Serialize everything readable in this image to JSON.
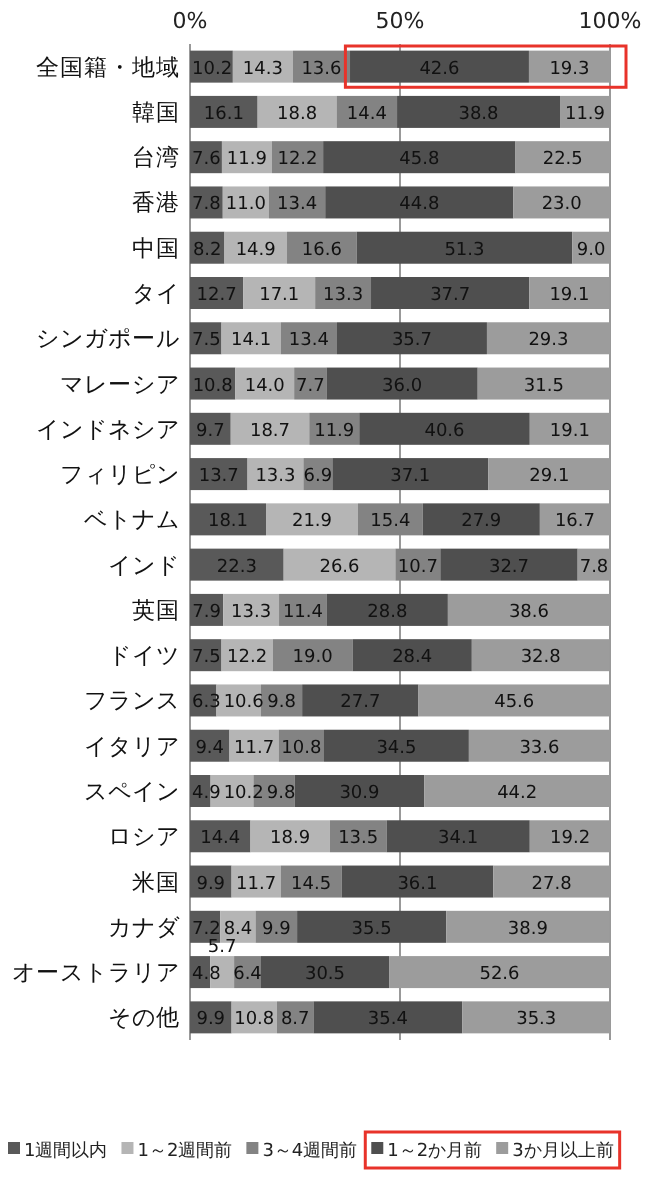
{
  "chart_data": {
    "type": "bar",
    "orientation": "horizontal",
    "stacked": true,
    "grid": "x",
    "legend": "bottom",
    "categories": [
      "全国籍・地域",
      "韓国",
      "台湾",
      "香港",
      "中国",
      "タイ",
      "シンガポール",
      "マレーシア",
      "インドネシア",
      "フィリピン",
      "ベトナム",
      "インド",
      "英国",
      "ドイツ",
      "フランス",
      "イタリア",
      "スペイン",
      "ロシア",
      "米国",
      "カナダ",
      "オーストラリア",
      "その他"
    ],
    "xlim": [
      0,
      100
    ],
    "xticks": [
      {
        "value": 0,
        "label": "0%"
      },
      {
        "value": 50,
        "label": "50%"
      },
      {
        "value": 100,
        "label": "100%"
      }
    ],
    "series": [
      {
        "name": "1週間以内",
        "color": "#595959",
        "values": [
          10.2,
          16.1,
          7.6,
          7.8,
          8.2,
          12.7,
          7.5,
          10.8,
          9.7,
          13.7,
          18.1,
          22.3,
          7.9,
          7.5,
          6.3,
          9.4,
          4.9,
          14.4,
          9.9,
          7.2,
          4.8,
          9.9
        ],
        "value_labels": [
          "10.2",
          "16.1",
          "7.6",
          "7.8",
          "8.2",
          "12.7",
          "7.5",
          "10.8",
          "9.7",
          "13.7",
          "18.1",
          "22.3",
          "7.9",
          "7.5",
          "6.3",
          "9.4",
          "4.9",
          "14.4",
          "9.9",
          "7.2",
          "4.8",
          "9.9"
        ]
      },
      {
        "name": "1～2週間前",
        "color": "#b5b5b5",
        "values": [
          14.3,
          18.8,
          11.9,
          11.0,
          14.9,
          17.1,
          14.1,
          14.0,
          18.7,
          13.3,
          21.9,
          26.6,
          13.3,
          12.2,
          10.6,
          11.7,
          10.2,
          18.9,
          11.7,
          8.4,
          5.7,
          10.8
        ],
        "value_labels": [
          "14.3",
          "18.8",
          "11.9",
          "11.0",
          "14.9",
          "17.1",
          "14.1",
          "14.0",
          "18.7",
          "13.3",
          "21.9",
          "26.6",
          "13.3",
          "12.2",
          "10.6",
          "11.7",
          "10.2",
          "18.9",
          "11.7",
          "8.4",
          "5.7",
          "10.8"
        ]
      },
      {
        "name": "3～4週間前",
        "color": "#838383",
        "values": [
          13.6,
          14.4,
          12.2,
          13.4,
          16.6,
          13.3,
          13.4,
          7.7,
          11.9,
          6.9,
          15.4,
          10.7,
          11.4,
          19.0,
          9.8,
          10.8,
          9.8,
          13.5,
          14.5,
          9.9,
          6.4,
          8.7
        ],
        "value_labels": [
          "13.6",
          "14.4",
          "12.2",
          "13.4",
          "16.6",
          "13.3",
          "13.4",
          "7.7",
          "11.9",
          "6.9",
          "15.4",
          "10.7",
          "11.4",
          "19.0",
          "9.8",
          "10.8",
          "9.8",
          "13.5",
          "14.5",
          "9.9",
          "6.4",
          "8.7"
        ]
      },
      {
        "name": "1～2か月前",
        "color": "#4f4f4f",
        "values": [
          42.6,
          38.8,
          45.8,
          44.8,
          51.3,
          37.7,
          35.7,
          36.0,
          40.6,
          37.1,
          27.9,
          32.7,
          28.8,
          28.4,
          27.7,
          34.5,
          30.9,
          34.1,
          36.1,
          35.5,
          30.5,
          35.4
        ],
        "value_labels": [
          "42.6",
          "38.8",
          "45.8",
          "44.8",
          "51.3",
          "37.7",
          "35.7",
          "36.0",
          "40.6",
          "37.1",
          "27.9",
          "32.7",
          "28.8",
          "28.4",
          "27.7",
          "34.5",
          "30.9",
          "34.1",
          "36.1",
          "35.5",
          "30.5",
          "35.4"
        ]
      },
      {
        "name": "3か月以上前",
        "color": "#9c9c9c",
        "values": [
          19.3,
          11.9,
          22.5,
          23.0,
          9.0,
          19.1,
          29.3,
          31.5,
          19.1,
          29.1,
          16.7,
          7.8,
          38.6,
          32.8,
          45.6,
          33.6,
          44.2,
          19.2,
          27.8,
          38.9,
          52.6,
          35.3
        ],
        "value_labels": [
          "19.3",
          "11.9",
          "22.5",
          "23.0",
          "9.0",
          "19.1",
          "29.3",
          "31.5",
          "19.1",
          "29.1",
          "16.7",
          "7.8",
          "38.6",
          "32.8",
          "45.6",
          "33.6",
          "44.2",
          "19.2",
          "27.8",
          "38.9",
          "52.6",
          "35.3"
        ]
      }
    ]
  }
}
